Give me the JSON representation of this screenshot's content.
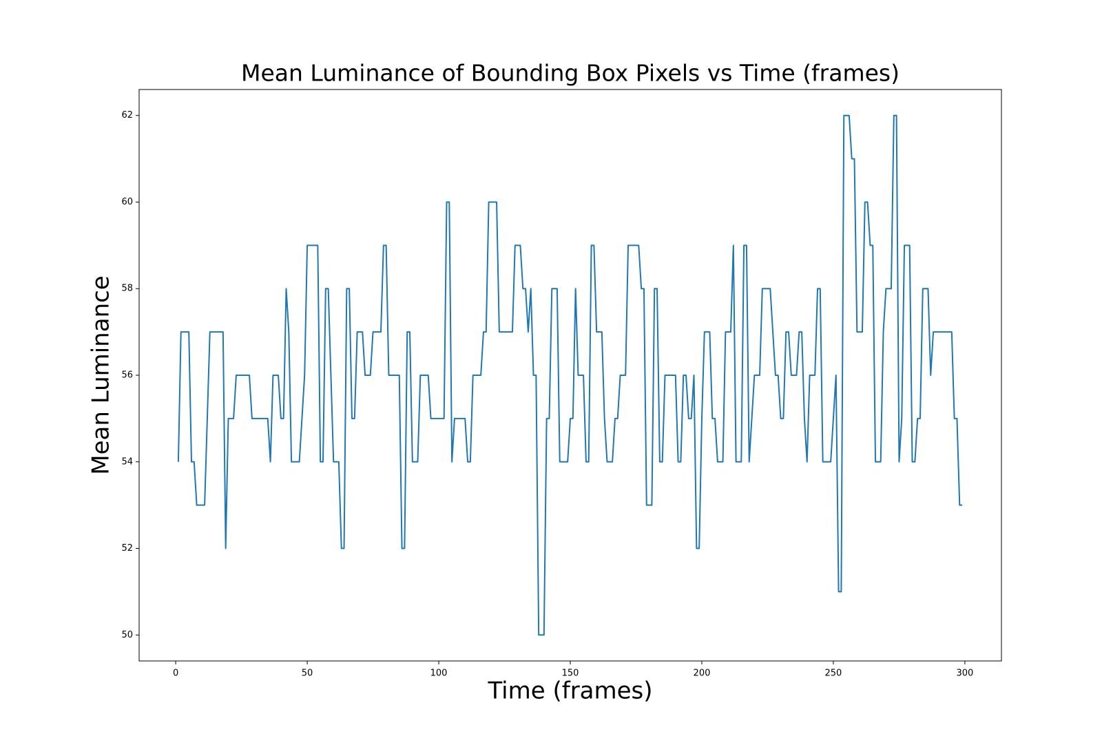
{
  "chart_data": {
    "type": "line",
    "title": "Mean Luminance of Bounding Box Pixels vs Time (frames)",
    "x_label": "Time (frames)",
    "y_label": "Mean Luminance",
    "color": "#1f77b4",
    "grid": false,
    "xlim": [
      -13.9,
      313.9
    ],
    "xticks": [
      0,
      50,
      100,
      150,
      200,
      250,
      300
    ],
    "ylim": [
      49.4,
      62.6
    ],
    "yticks": [
      50,
      52,
      54,
      56,
      58,
      60,
      62
    ],
    "x": [
      1,
      2,
      3,
      4,
      5,
      6,
      7,
      8,
      9,
      10,
      11,
      12,
      13,
      14,
      15,
      16,
      17,
      18,
      19,
      20,
      21,
      22,
      23,
      24,
      25,
      26,
      27,
      28,
      29,
      30,
      31,
      32,
      33,
      34,
      35,
      36,
      37,
      38,
      39,
      40,
      41,
      42,
      43,
      44,
      45,
      46,
      47,
      48,
      49,
      50,
      51,
      52,
      53,
      54,
      55,
      56,
      57,
      58,
      59,
      60,
      61,
      62,
      63,
      64,
      65,
      66,
      67,
      68,
      69,
      70,
      71,
      72,
      73,
      74,
      75,
      76,
      77,
      78,
      79,
      80,
      81,
      82,
      83,
      84,
      85,
      86,
      87,
      88,
      89,
      90,
      91,
      92,
      93,
      94,
      95,
      96,
      97,
      98,
      99,
      100,
      101,
      102,
      103,
      104,
      105,
      106,
      107,
      108,
      109,
      110,
      111,
      112,
      113,
      114,
      115,
      116,
      117,
      118,
      119,
      120,
      121,
      122,
      123,
      124,
      125,
      126,
      127,
      128,
      129,
      130,
      131,
      132,
      133,
      134,
      135,
      136,
      137,
      138,
      139,
      140,
      141,
      142,
      143,
      144,
      145,
      146,
      147,
      148,
      149,
      150,
      151,
      152,
      153,
      154,
      155,
      156,
      157,
      158,
      159,
      160,
      161,
      162,
      163,
      164,
      165,
      166,
      167,
      168,
      169,
      170,
      171,
      172,
      173,
      174,
      175,
      176,
      177,
      178,
      179,
      180,
      181,
      182,
      183,
      184,
      185,
      186,
      187,
      188,
      189,
      190,
      191,
      192,
      193,
      194,
      195,
      196,
      197,
      198,
      199,
      200,
      201,
      202,
      203,
      204,
      205,
      206,
      207,
      208,
      209,
      210,
      211,
      212,
      213,
      214,
      215,
      216,
      217,
      218,
      219,
      220,
      221,
      222,
      223,
      224,
      225,
      226,
      227,
      228,
      229,
      230,
      231,
      232,
      233,
      234,
      235,
      236,
      237,
      238,
      239,
      240,
      241,
      242,
      243,
      244,
      245,
      246,
      247,
      248,
      249,
      250,
      251,
      252,
      253,
      254,
      255,
      256,
      257,
      258,
      259,
      260,
      261,
      262,
      263,
      264,
      265,
      266,
      267,
      268,
      269,
      270,
      271,
      272,
      273,
      274,
      275,
      276,
      277,
      278,
      279,
      280,
      281,
      282,
      283,
      284,
      285,
      286,
      287,
      288,
      289,
      290,
      291,
      292,
      293,
      294,
      295,
      296,
      297,
      298,
      299
    ],
    "values": [
      54,
      57,
      57,
      57,
      57,
      54,
      54,
      53,
      53,
      53,
      53,
      55,
      57,
      57,
      57,
      57,
      57,
      57,
      52,
      55,
      55,
      55,
      56,
      56,
      56,
      56,
      56,
      56,
      55,
      55,
      55,
      55,
      55,
      55,
      55,
      54,
      56,
      56,
      56,
      55,
      55,
      58,
      57,
      54,
      54,
      54,
      54,
      55,
      56,
      59,
      59,
      59,
      59,
      59,
      54,
      54,
      58,
      58,
      56,
      54,
      54,
      54,
      52,
      52,
      58,
      58,
      55,
      55,
      57,
      57,
      57,
      56,
      56,
      56,
      57,
      57,
      57,
      57,
      59,
      59,
      56,
      56,
      56,
      56,
      56,
      52,
      52,
      57,
      57,
      54,
      54,
      54,
      56,
      56,
      56,
      56,
      55,
      55,
      55,
      55,
      55,
      55,
      60,
      60,
      54,
      55,
      55,
      55,
      55,
      55,
      54,
      54,
      56,
      56,
      56,
      56,
      57,
      57,
      60,
      60,
      60,
      60,
      57,
      57,
      57,
      57,
      57,
      57,
      59,
      59,
      59,
      58,
      58,
      57,
      58,
      56,
      56,
      50,
      50,
      50,
      55,
      55,
      58,
      58,
      58,
      54,
      54,
      54,
      54,
      55,
      55,
      58,
      56,
      56,
      56,
      54,
      54,
      59,
      59,
      57,
      57,
      57,
      55,
      54,
      54,
      54,
      55,
      55,
      56,
      56,
      56,
      59,
      59,
      59,
      59,
      59,
      58,
      58,
      53,
      53,
      53,
      58,
      58,
      54,
      54,
      56,
      56,
      56,
      56,
      56,
      54,
      54,
      56,
      56,
      55,
      55,
      56,
      52,
      52,
      55,
      57,
      57,
      57,
      55,
      55,
      54,
      54,
      54,
      57,
      57,
      57,
      59,
      54,
      54,
      54,
      59,
      59,
      54,
      55,
      56,
      56,
      56,
      58,
      58,
      58,
      58,
      57,
      56,
      56,
      55,
      55,
      57,
      57,
      56,
      56,
      56,
      57,
      57,
      55,
      54,
      56,
      56,
      56,
      58,
      58,
      54,
      54,
      54,
      54,
      55,
      56,
      51,
      51,
      62,
      62,
      62,
      61,
      61,
      57,
      57,
      57,
      60,
      60,
      59,
      59,
      54,
      54,
      54,
      57,
      58,
      58,
      58,
      62,
      62,
      54,
      55,
      59,
      59,
      59,
      54,
      54,
      55,
      55,
      58,
      58,
      58,
      56,
      57,
      57,
      57,
      57,
      57,
      57,
      57,
      57,
      55,
      55,
      53,
      53
    ]
  }
}
